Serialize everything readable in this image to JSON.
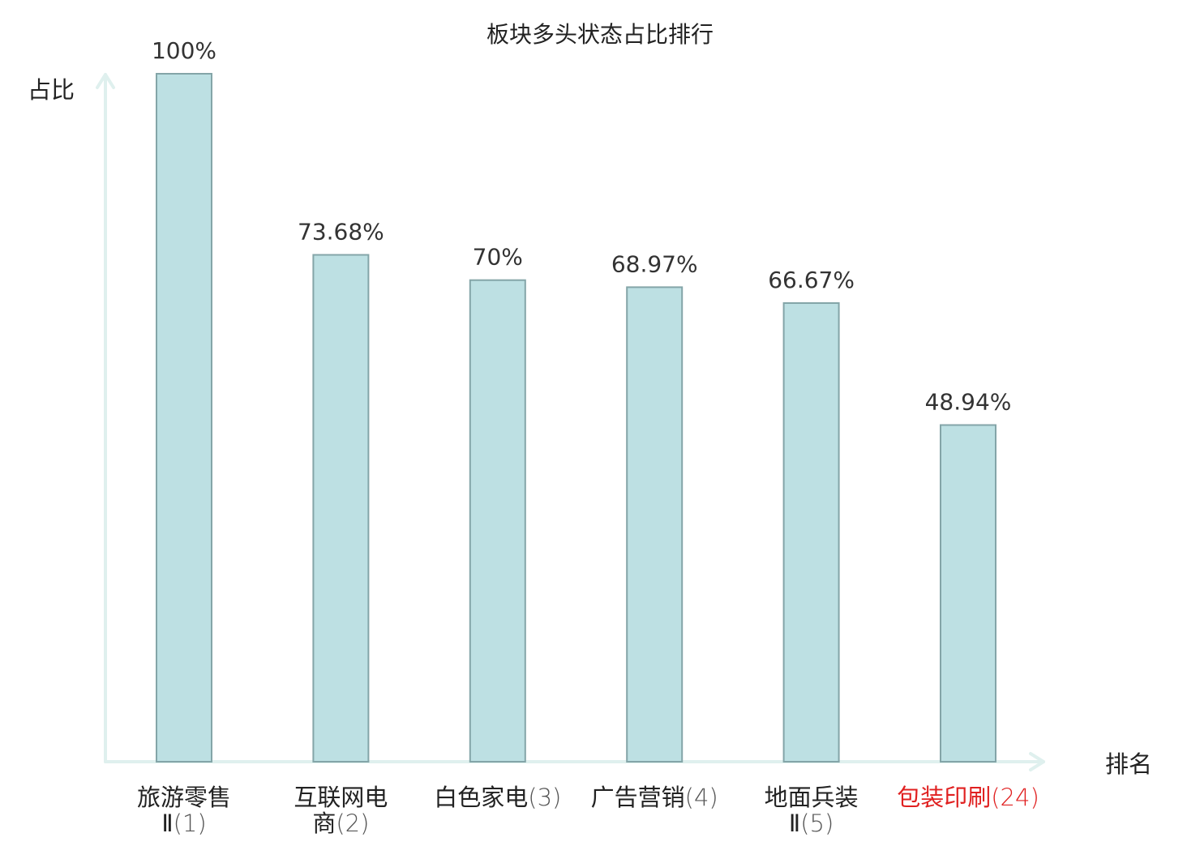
{
  "chart_data": {
    "type": "bar",
    "title": "板块多头状态占比排行",
    "ylabel": "占比",
    "xlabel": "排名",
    "categories": [
      {
        "name_lines": [
          "旅游零售",
          "Ⅱ"
        ],
        "rank": "(1)",
        "highlight": false
      },
      {
        "name_lines": [
          "互联网电",
          "商"
        ],
        "rank": "(2)",
        "highlight": false
      },
      {
        "name_lines": [
          "白色家电"
        ],
        "rank": "(3)",
        "highlight": false
      },
      {
        "name_lines": [
          "广告营销"
        ],
        "rank": "(4)",
        "highlight": false
      },
      {
        "name_lines": [
          "地面兵装",
          "Ⅱ"
        ],
        "rank": "(5)",
        "highlight": false
      },
      {
        "name_lines": [
          "包装印刷"
        ],
        "rank": "(24)",
        "highlight": true
      }
    ],
    "values": [
      100,
      73.68,
      70,
      68.97,
      66.67,
      48.94
    ],
    "value_labels": [
      "100%",
      "73.68%",
      "70%",
      "68.97%",
      "66.67%",
      "48.94%"
    ],
    "ylim": [
      0,
      100
    ],
    "grid": false,
    "legend": "none",
    "colors": {
      "bar_fill": "#bde0e3",
      "bar_stroke": "#84a5a8",
      "axis": "#dff0ee",
      "text": "#222222",
      "rank_text": "#555555",
      "highlight": "#e02020"
    }
  }
}
